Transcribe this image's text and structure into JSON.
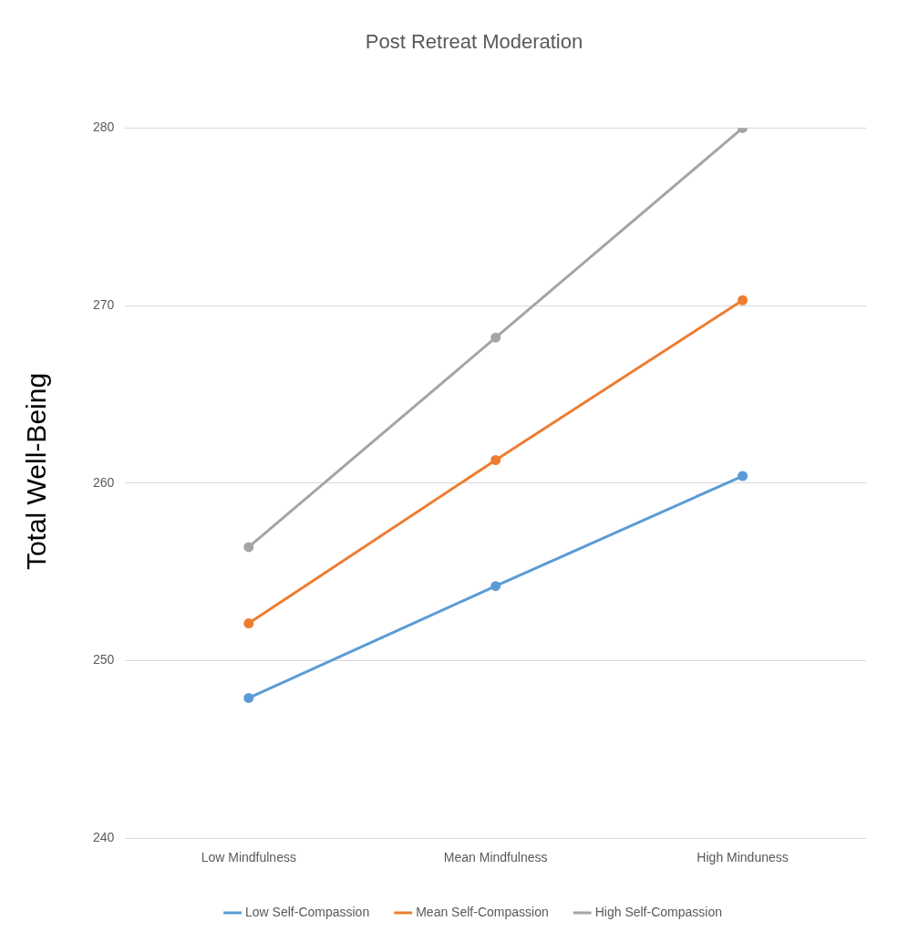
{
  "chart_data": {
    "type": "line",
    "title": "Post Retreat Moderation",
    "ylabel": "Total Well-Being",
    "categories": [
      "Low Mindfulness",
      "Mean Mindfulness",
      "High Minduness"
    ],
    "series": [
      {
        "name": "Low Self-Compassion",
        "color": "#5b9bd5",
        "values": [
          247.9,
          254.2,
          260.4
        ]
      },
      {
        "name": "Mean Self-Compassion",
        "color": "#ed7d31",
        "values": [
          252.1,
          261.3,
          270.3
        ]
      },
      {
        "name": "High Self-Compassion",
        "color": "#a5a5a5",
        "values": [
          256.4,
          268.2,
          280
        ]
      }
    ],
    "ylim": [
      240,
      280
    ],
    "yticks": [
      240,
      250,
      260,
      270,
      280
    ],
    "grid": "y",
    "legend": "bottom",
    "marker": "circle",
    "line_style": "solid"
  }
}
